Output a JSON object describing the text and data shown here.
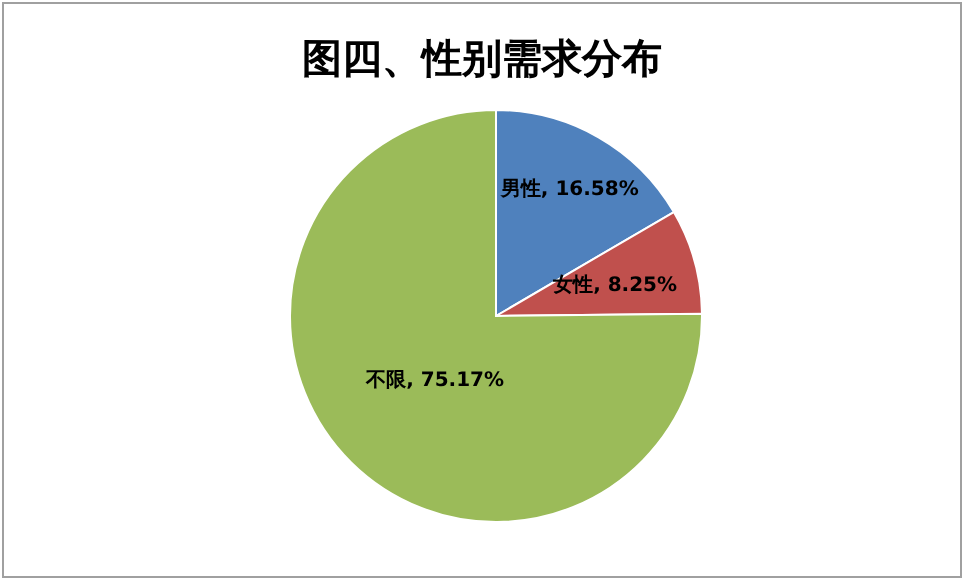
{
  "chart_data": {
    "type": "pie",
    "title": "图四、性别需求分布",
    "categories": [
      "男性",
      "女性",
      "不限"
    ],
    "values": [
      16.58,
      8.25,
      75.17
    ],
    "colors": [
      "#4f81bd",
      "#c0504d",
      "#9bbb59"
    ],
    "value_labels": [
      ", 16.58%",
      ", 8.25%",
      ", 75.17%"
    ],
    "legend": false
  }
}
